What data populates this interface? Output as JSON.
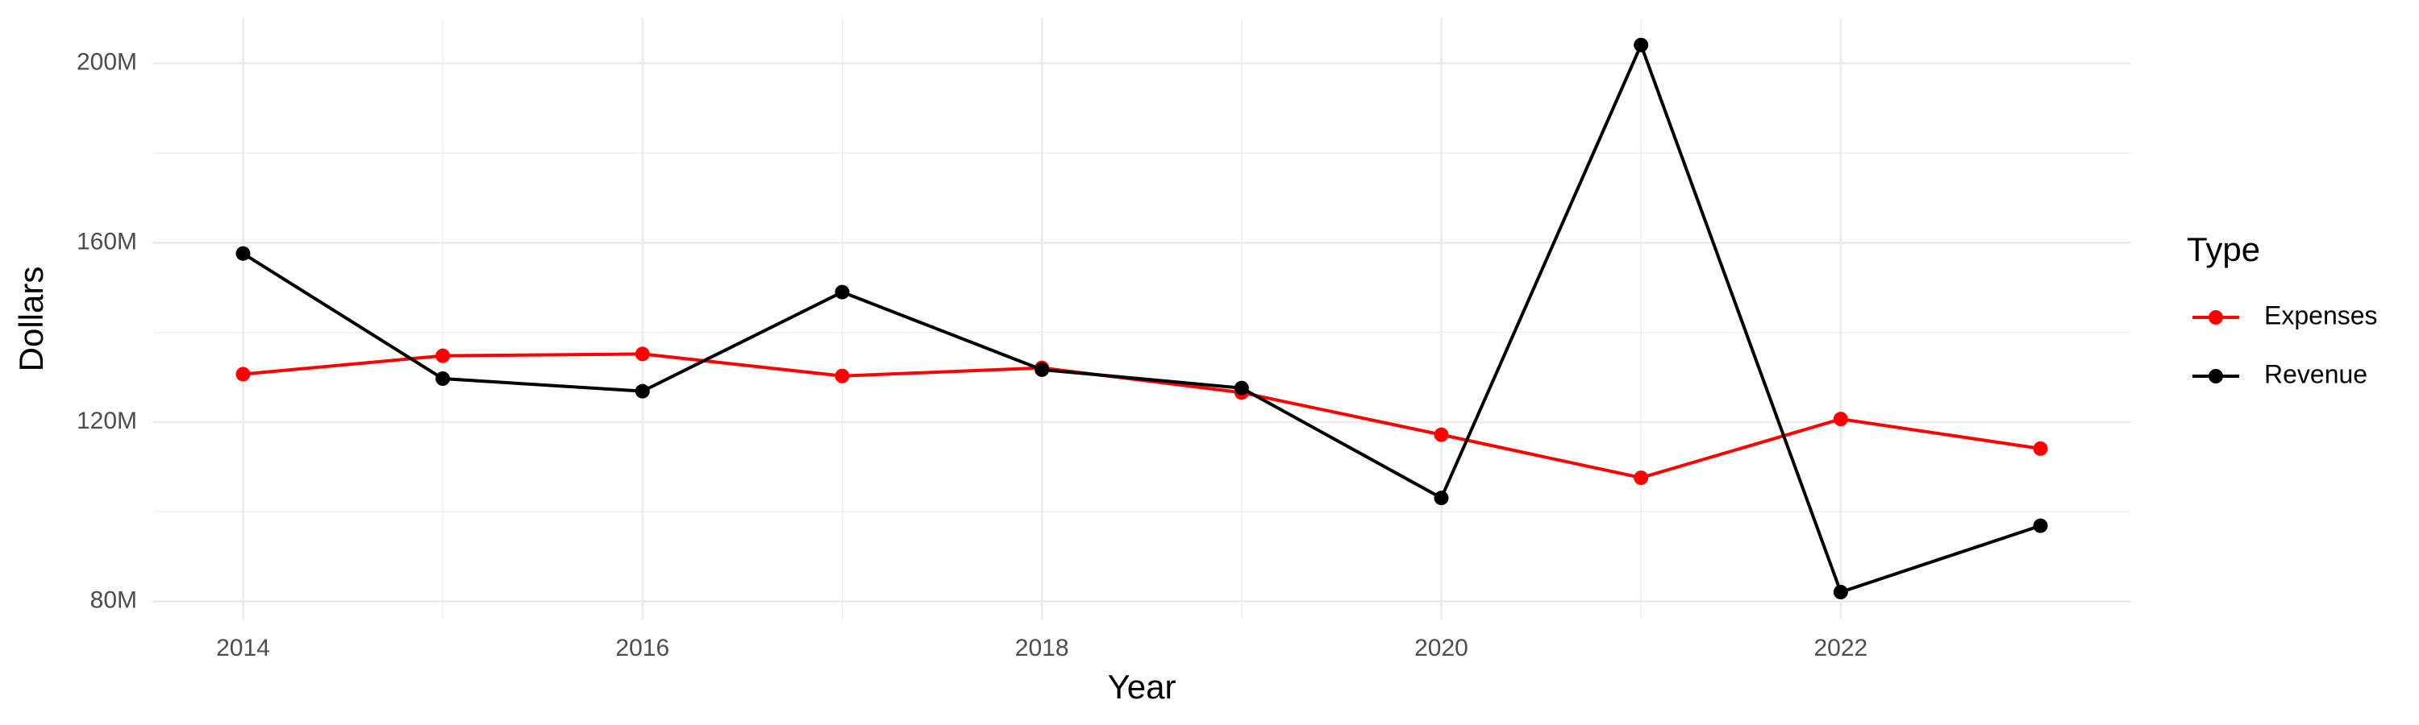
{
  "chart_data": {
    "type": "line",
    "x_label": "Year",
    "y_label": "Dollars",
    "legend_title": "Type",
    "legend_position": "right",
    "x": [
      2014,
      2015,
      2016,
      2017,
      2018,
      2019,
      2020,
      2021,
      2022,
      2023
    ],
    "series": [
      {
        "name": "Expenses",
        "color": "#ff0000",
        "values": [
          130700000,
          134800000,
          135200000,
          130300000,
          132100000,
          126600000,
          117200000,
          107600000,
          120700000,
          114100000
        ]
      },
      {
        "name": "Revenue",
        "color": "#000000",
        "values": [
          157600000,
          129700000,
          126900000,
          149000000,
          131700000,
          127600000,
          103100000,
          204100000,
          82100000,
          96900000
        ]
      }
    ],
    "xlim": [
      2013.55,
      2023.45
    ],
    "xticks": [
      2014,
      2016,
      2018,
      2020,
      2022
    ],
    "ylim": [
      76000000,
      210000000
    ],
    "yticks": [
      {
        "value": 80000000,
        "label": "80M"
      },
      {
        "value": 120000000,
        "label": "120M"
      },
      {
        "value": 160000000,
        "label": "160M"
      },
      {
        "value": 200000000,
        "label": "200M"
      }
    ],
    "grid": true
  }
}
